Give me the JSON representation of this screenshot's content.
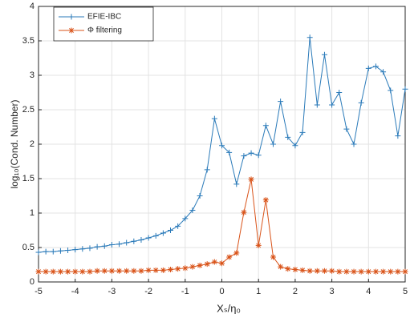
{
  "chart_data": {
    "type": "line",
    "xlabel": "Xₛ/η₀",
    "ylabel": "log₁₀(Cond. Number)",
    "x": [
      -5,
      -4.8,
      -4.6,
      -4.4,
      -4.2,
      -4,
      -3.8,
      -3.6,
      -3.4,
      -3.2,
      -3,
      -2.8,
      -2.6,
      -2.4,
      -2.2,
      -2,
      -1.8,
      -1.6,
      -1.4,
      -1.2,
      -1,
      -0.8,
      -0.6,
      -0.4,
      -0.2,
      0,
      0.2,
      0.4,
      0.6,
      0.8,
      1,
      1.2,
      1.4,
      1.6,
      1.8,
      2,
      2.2,
      2.4,
      2.6,
      2.8,
      3,
      3.2,
      3.4,
      3.6,
      3.8,
      4,
      4.2,
      4.4,
      4.6,
      4.8,
      5
    ],
    "series": [
      {
        "name": "EFIE-IBC",
        "color": "#2a7ab9",
        "marker": "plus",
        "values": [
          0.43,
          0.44,
          0.44,
          0.45,
          0.46,
          0.47,
          0.48,
          0.49,
          0.51,
          0.52,
          0.54,
          0.55,
          0.57,
          0.59,
          0.61,
          0.64,
          0.67,
          0.71,
          0.75,
          0.81,
          0.92,
          1.04,
          1.25,
          1.63,
          2.37,
          1.98,
          1.88,
          1.42,
          1.83,
          1.87,
          1.84,
          2.27,
          2.0,
          2.62,
          2.1,
          1.98,
          2.17,
          3.55,
          2.57,
          3.3,
          2.57,
          2.75,
          2.22,
          2.0,
          2.6,
          3.1,
          3.13,
          3.05,
          2.78,
          2.12,
          2.8
        ]
      },
      {
        "name": "Φ filtering",
        "color": "#d95319",
        "marker": "star",
        "values": [
          0.15,
          0.15,
          0.15,
          0.15,
          0.15,
          0.15,
          0.15,
          0.15,
          0.16,
          0.16,
          0.16,
          0.16,
          0.16,
          0.16,
          0.16,
          0.17,
          0.17,
          0.17,
          0.18,
          0.19,
          0.2,
          0.22,
          0.24,
          0.26,
          0.29,
          0.27,
          0.36,
          0.42,
          1.01,
          1.49,
          0.53,
          1.19,
          0.36,
          0.22,
          0.19,
          0.18,
          0.17,
          0.16,
          0.16,
          0.16,
          0.16,
          0.15,
          0.15,
          0.15,
          0.15,
          0.15,
          0.15,
          0.15,
          0.15,
          0.15,
          0.15
        ]
      }
    ],
    "xlim": [
      -5,
      5
    ],
    "xticks": [
      -5,
      -4,
      -3,
      -2,
      -1,
      0,
      1,
      2,
      3,
      4,
      5
    ],
    "ylim": [
      0,
      4
    ],
    "yticks": [
      0,
      0.5,
      1,
      1.5,
      2,
      2.5,
      3,
      3.5,
      4
    ],
    "grid": true,
    "legend": "upper-left"
  }
}
